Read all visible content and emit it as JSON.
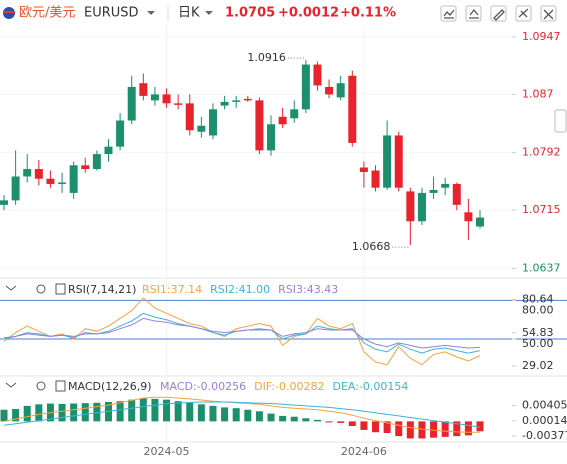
{
  "header": {
    "pair": "欧元/美元",
    "symbol": "EURUSD",
    "period": "日K",
    "price": 1.0705,
    "change": "+0.0012",
    "change_pct": "+0.11%"
  },
  "chart_data": [
    {
      "type": "candlestick",
      "categories": [
        null,
        null,
        null,
        null,
        null,
        null,
        null,
        null,
        null,
        null,
        null,
        null,
        null,
        null,
        "2024-05",
        null,
        null,
        null,
        null,
        null,
        null,
        null,
        null,
        null,
        null,
        null,
        null,
        null,
        null,
        null,
        null,
        "2024-06",
        null,
        null,
        null,
        null,
        null,
        null,
        null,
        null,
        null,
        null
      ],
      "open": [
        1.0722,
        1.0728,
        1.076,
        1.077,
        1.0757,
        1.075,
        1.0738,
        1.0775,
        1.077,
        1.079,
        1.08,
        1.0835,
        1.0885,
        1.0862,
        1.087,
        1.0858,
        1.0858,
        1.082,
        1.0815,
        1.0855,
        1.086,
        1.0864,
        1.0862,
        1.0795,
        1.084,
        1.0838,
        1.085,
        1.091,
        1.088,
        1.0866,
        1.0895,
        1.0772,
        1.0768,
        1.0745,
        1.0815,
        1.074,
        1.07,
        1.0738,
        1.0745,
        1.075,
        1.0712,
        1.0693
      ],
      "high": [
        1.0735,
        1.0795,
        1.079,
        1.0782,
        1.0768,
        1.0765,
        1.078,
        1.0785,
        1.0795,
        1.081,
        1.0845,
        1.0895,
        1.0898,
        1.088,
        1.0878,
        1.087,
        1.087,
        1.084,
        1.0858,
        1.0868,
        1.0868,
        1.0868,
        1.0866,
        1.0842,
        1.0852,
        1.0862,
        1.0916,
        1.0914,
        1.089,
        1.0895,
        1.0902,
        1.078,
        1.0775,
        1.0835,
        1.082,
        1.0745,
        1.0745,
        1.076,
        1.0758,
        1.0752,
        1.073,
        1.0715
      ],
      "low": [
        1.0715,
        1.0722,
        1.0752,
        1.0748,
        1.0745,
        1.0738,
        1.073,
        1.0765,
        1.0768,
        1.078,
        1.0795,
        1.083,
        1.0862,
        1.0855,
        1.0852,
        1.085,
        1.0815,
        1.0812,
        1.081,
        1.085,
        1.0852,
        1.086,
        1.079,
        1.0788,
        1.0825,
        1.0832,
        1.0845,
        1.0875,
        1.0865,
        1.0862,
        1.08,
        1.0745,
        1.074,
        1.0742,
        1.074,
        1.0668,
        1.0695,
        1.073,
        1.0735,
        1.0715,
        1.0675,
        1.069
      ],
      "close": [
        1.0728,
        1.076,
        1.077,
        1.0757,
        1.075,
        1.0752,
        1.0775,
        1.077,
        1.079,
        1.08,
        1.0835,
        1.088,
        1.0868,
        1.087,
        1.0858,
        1.0856,
        1.0822,
        1.0828,
        1.085,
        1.086,
        1.0862,
        1.0862,
        1.0795,
        1.083,
        1.083,
        1.085,
        1.091,
        1.0882,
        1.087,
        1.0885,
        1.0805,
        1.0766,
        1.0745,
        1.0815,
        1.0745,
        1.07,
        1.0738,
        1.0742,
        1.075,
        1.0722,
        1.07,
        1.0705
      ],
      "up_color": "#1c8f6c",
      "down_color": "#e8232b",
      "ylim": [
        1.0628,
        1.0963
      ],
      "yticks": [
        1.0947,
        1.087,
        1.0792,
        1.0715,
        1.0637
      ],
      "annotations": [
        1.0916,
        1.0668
      ]
    },
    {
      "type": "line",
      "title": "RSI(7,14,21)",
      "series": [
        {
          "name": "RSI1:37.14",
          "color": "#f4a340",
          "values": [
            48,
            55,
            60,
            56,
            52,
            54,
            50,
            58,
            56,
            60,
            66,
            72,
            82,
            74,
            70,
            66,
            62,
            60,
            55,
            52,
            58,
            60,
            62,
            60,
            45,
            52,
            54,
            66,
            60,
            58,
            62,
            40,
            32,
            30,
            44,
            35,
            30,
            38,
            40,
            36,
            33,
            37.14
          ]
        },
        {
          "name": "RSI2:41.00",
          "color": "#3cb4d8",
          "values": [
            50,
            52,
            55,
            54,
            52,
            53,
            51,
            55,
            54,
            56,
            60,
            64,
            70,
            67,
            65,
            62,
            60,
            58,
            55,
            53,
            56,
            57,
            58,
            57,
            50,
            53,
            54,
            60,
            58,
            57,
            58,
            47,
            42,
            40,
            46,
            42,
            39,
            42,
            43,
            41,
            39,
            41
          ]
        },
        {
          "name": "RSI3:43.43",
          "color": "#9a7fd6",
          "values": [
            51,
            52,
            54,
            53,
            52,
            53,
            52,
            54,
            54,
            55,
            58,
            61,
            66,
            64,
            63,
            61,
            60,
            58,
            56,
            55,
            56,
            57,
            57,
            57,
            52,
            54,
            55,
            58,
            57,
            57,
            57,
            50,
            46,
            44,
            47,
            45,
            43,
            44,
            45,
            44,
            43,
            43.43
          ]
        }
      ],
      "ylim": [
        22,
        92
      ],
      "yticks": [
        {
          "value": 80,
          "label": "80.00"
        },
        80.64,
        54.83,
        {
          "value": 50,
          "label": "50.00"
        },
        29.02
      ],
      "reference_lines": [
        80,
        50
      ],
      "reference_color": "#4a80d6"
    },
    {
      "type": "macd",
      "title": "MACD(12,26,9)",
      "series": [
        {
          "name": "MACD:-0.00256",
          "color": "#9a7fd6",
          "values": [
            0.003,
            0.0032,
            0.004,
            0.0044,
            0.0046,
            0.0045,
            0.0046,
            0.0047,
            0.0048,
            0.005,
            0.0052,
            0.0056,
            0.006,
            0.0058,
            0.0056,
            0.0052,
            0.0048,
            0.0044,
            0.004,
            0.0036,
            0.0034,
            0.003,
            0.0026,
            0.002,
            0.0014,
            0.0012,
            0.0008,
            0.0004,
            -0.0002,
            -0.0004,
            -0.0012,
            -0.0022,
            -0.0028,
            -0.003,
            -0.0038,
            -0.0044,
            -0.0044,
            -0.0042,
            -0.004,
            -0.0038,
            -0.0036,
            -0.00256
          ]
        },
        {
          "name": "DIF:-0.00282",
          "color": "#f4a340",
          "values": [
            0,
            0.0006,
            0.0012,
            0.0018,
            0.0022,
            0.0026,
            0.003,
            0.0034,
            0.0038,
            0.0042,
            0.0048,
            0.0054,
            0.006,
            0.0062,
            0.0062,
            0.006,
            0.0058,
            0.0055,
            0.0052,
            0.005,
            0.0048,
            0.0046,
            0.0044,
            0.004,
            0.0036,
            0.0034,
            0.0032,
            0.003,
            0.0026,
            0.0022,
            0.0016,
            0.0008,
            0.0002,
            -0.0004,
            -0.001,
            -0.0016,
            -0.002,
            -0.0023,
            -0.0025,
            -0.0027,
            -0.0028,
            -0.00282
          ]
        },
        {
          "name": "DEA:-0.00154",
          "color": "#3cb4d8",
          "values": [
            -0.001,
            -0.0006,
            -0.0002,
            0.0002,
            0.0006,
            0.001,
            0.0014,
            0.0018,
            0.0022,
            0.0026,
            0.003,
            0.0034,
            0.0038,
            0.0042,
            0.0045,
            0.0047,
            0.0049,
            0.005,
            0.005,
            0.005,
            0.0049,
            0.0048,
            0.0047,
            0.0046,
            0.0044,
            0.0042,
            0.004,
            0.0038,
            0.0036,
            0.0033,
            0.003,
            0.0026,
            0.0022,
            0.0018,
            0.0014,
            0.001,
            0.0006,
            0.0002,
            -0.0002,
            -0.0006,
            -0.001,
            -0.00154
          ]
        }
      ],
      "up_color": "#1c8f6c",
      "down_color": "#e8232b",
      "ylim": [
        -0.0048,
        0.0068
      ],
      "yticks": [
        0.00405,
        0.00014,
        -0.00377
      ]
    }
  ]
}
